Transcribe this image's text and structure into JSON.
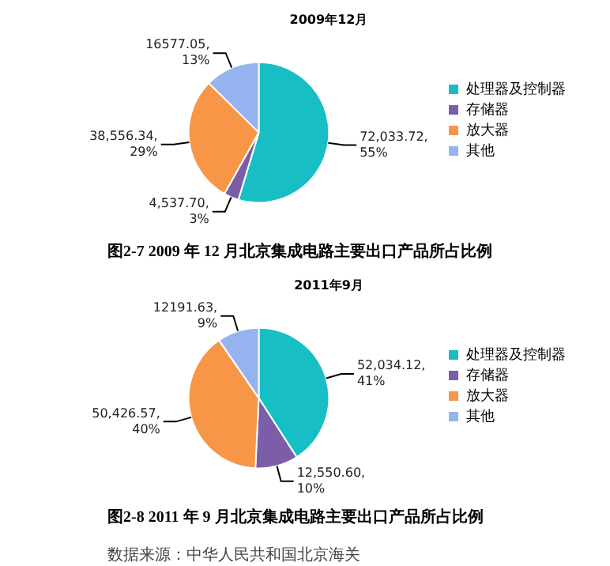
{
  "chart_data": [
    {
      "type": "pie",
      "title": "2009年12月",
      "categories": [
        "处理器及控制器",
        "存储器",
        "放大器",
        "其他"
      ],
      "values": [
        72033.72,
        4537.7,
        38556.34,
        16577.05
      ],
      "colors": [
        "#17bec3",
        "#7b5ea7",
        "#f79646",
        "#95b3ef"
      ],
      "value_labels": [
        "72,033.72, 55%",
        "4,537.70, 3%",
        "38,556.34, 29%",
        "16577.05, 13%"
      ],
      "legend": "right",
      "annotations": [
        "图2-7   2009 年 12 月北京集成电路主要出口产品所占比例"
      ]
    },
    {
      "type": "pie",
      "title": "2011年9月",
      "categories": [
        "处理器及控制器",
        "存储器",
        "放大器",
        "其他"
      ],
      "values": [
        52034.12,
        12550.6,
        50426.57,
        12191.63
      ],
      "colors": [
        "#17bec3",
        "#7b5ea7",
        "#f79646",
        "#95b3ef"
      ],
      "value_labels": [
        "52,034.12, 41%",
        "12,550.60, 10%",
        "50,426.57, 40%",
        "12191.63, 9%"
      ],
      "legend": "right",
      "annotations": [
        "图2-8   2011 年 9 月北京集成电路主要出口产品所占比例",
        "数据来源：中华人民共和国北京海关"
      ]
    }
  ]
}
